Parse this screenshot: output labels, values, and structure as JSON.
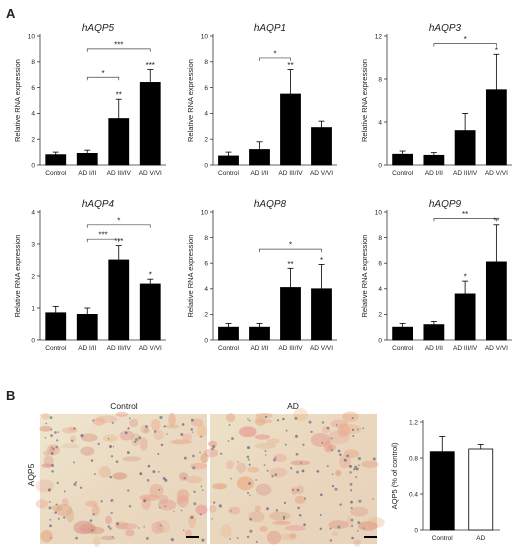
{
  "figure": {
    "panel_a_label": "A",
    "panel_b_label": "B",
    "micrograph_titles": [
      "Control",
      "AD"
    ],
    "micrograph_row_label": "AQP5"
  },
  "chart_data": [
    {
      "type": "bar",
      "title": "hAQP5",
      "ylabel": "Relative RNA expression",
      "categories": [
        "Control",
        "AD I/II",
        "AD III/IV",
        "AD V/VI"
      ],
      "values": [
        0.8,
        0.9,
        3.6,
        6.4
      ],
      "errors": [
        0.2,
        0.25,
        1.5,
        1.0
      ],
      "bar_stars": [
        "",
        "",
        "**",
        "***"
      ],
      "ylim": [
        0,
        10
      ],
      "yticks": [
        0,
        2,
        4,
        6,
        8,
        10
      ],
      "brackets": [
        {
          "from": 1,
          "to": 2,
          "level": 6.8,
          "label": "*"
        },
        {
          "from": 1,
          "to": 3,
          "level": 9.0,
          "label": "***"
        }
      ]
    },
    {
      "type": "bar",
      "title": "hAQP1",
      "ylabel": "Relative RNA expression",
      "categories": [
        "Control",
        "AD I/II",
        "AD III/IV",
        "AD V/VI"
      ],
      "values": [
        0.7,
        1.2,
        5.5,
        2.9
      ],
      "errors": [
        0.3,
        0.6,
        1.9,
        0.5
      ],
      "bar_stars": [
        "",
        "",
        "**",
        ""
      ],
      "ylim": [
        0,
        10
      ],
      "yticks": [
        0,
        2,
        4,
        6,
        8,
        10
      ],
      "brackets": [
        {
          "from": 1,
          "to": 2,
          "level": 8.3,
          "label": "*"
        }
      ]
    },
    {
      "type": "bar",
      "title": "hAQP3",
      "ylabel": "Relative RNA expression",
      "categories": [
        "Control",
        "AD I/II",
        "AD III/IV",
        "AD V/VI"
      ],
      "values": [
        1.0,
        0.9,
        3.2,
        7.0
      ],
      "errors": [
        0.3,
        0.25,
        1.6,
        3.3
      ],
      "bar_stars": [
        "",
        "",
        "",
        "*"
      ],
      "ylim": [
        0,
        12
      ],
      "yticks": [
        0,
        4,
        8,
        12
      ],
      "brackets": [
        {
          "from": 1,
          "to": 3,
          "level": 11.3,
          "label": "*"
        }
      ]
    },
    {
      "type": "bar",
      "title": "hAQP4",
      "ylabel": "Relative RNA expression",
      "categories": [
        "Control",
        "AD I/II",
        "AD III/IV",
        "AD V/VI"
      ],
      "values": [
        0.85,
        0.8,
        2.5,
        1.75
      ],
      "errors": [
        0.2,
        0.2,
        0.45,
        0.15
      ],
      "bar_stars": [
        "",
        "",
        "***",
        "*"
      ],
      "ylim": [
        0,
        4
      ],
      "yticks": [
        0,
        1,
        2,
        3,
        4
      ],
      "brackets": [
        {
          "from": 1,
          "to": 2,
          "level": 3.15,
          "label": "***"
        },
        {
          "from": 1,
          "to": 3,
          "level": 3.6,
          "label": "*"
        }
      ]
    },
    {
      "type": "bar",
      "title": "hAQP8",
      "ylabel": "Relative RNA expression",
      "categories": [
        "Control",
        "AD I/II",
        "AD III/IV",
        "AD V/VI"
      ],
      "values": [
        1.0,
        1.0,
        4.1,
        4.0
      ],
      "errors": [
        0.3,
        0.3,
        1.5,
        1.9
      ],
      "bar_stars": [
        "",
        "",
        "**",
        "*"
      ],
      "ylim": [
        0,
        10
      ],
      "yticks": [
        0,
        2,
        4,
        6,
        8,
        10
      ],
      "brackets": [
        {
          "from": 1,
          "to": 3,
          "level": 7.1,
          "label": "*"
        }
      ]
    },
    {
      "type": "bar",
      "title": "hAQP9",
      "ylabel": "Relative RNA expression",
      "categories": [
        "Control",
        "AD I/II",
        "AD III/IV",
        "AD V/VI"
      ],
      "values": [
        1.0,
        1.2,
        3.6,
        6.1
      ],
      "errors": [
        0.3,
        0.25,
        1.0,
        2.9
      ],
      "bar_stars": [
        "",
        "",
        "*",
        "**"
      ],
      "ylim": [
        0,
        10
      ],
      "yticks": [
        0,
        2,
        4,
        6,
        8,
        10
      ],
      "brackets": [
        {
          "from": 1,
          "to": 3,
          "level": 9.5,
          "label": "**"
        }
      ]
    },
    {
      "type": "bar",
      "title": "",
      "ylabel": "AQP5 (% of control)",
      "categories": [
        "Control",
        "AD"
      ],
      "values": [
        0.87,
        0.9
      ],
      "errors": [
        0.17,
        0.05
      ],
      "bar_fills": [
        "#000000",
        "#ffffff"
      ],
      "ylim": [
        0,
        1.2
      ],
      "yticks": [
        0,
        0.4,
        0.8,
        1.2
      ],
      "ytick_labels": [
        "0",
        "0.4",
        "0.8",
        "1.2"
      ]
    }
  ]
}
